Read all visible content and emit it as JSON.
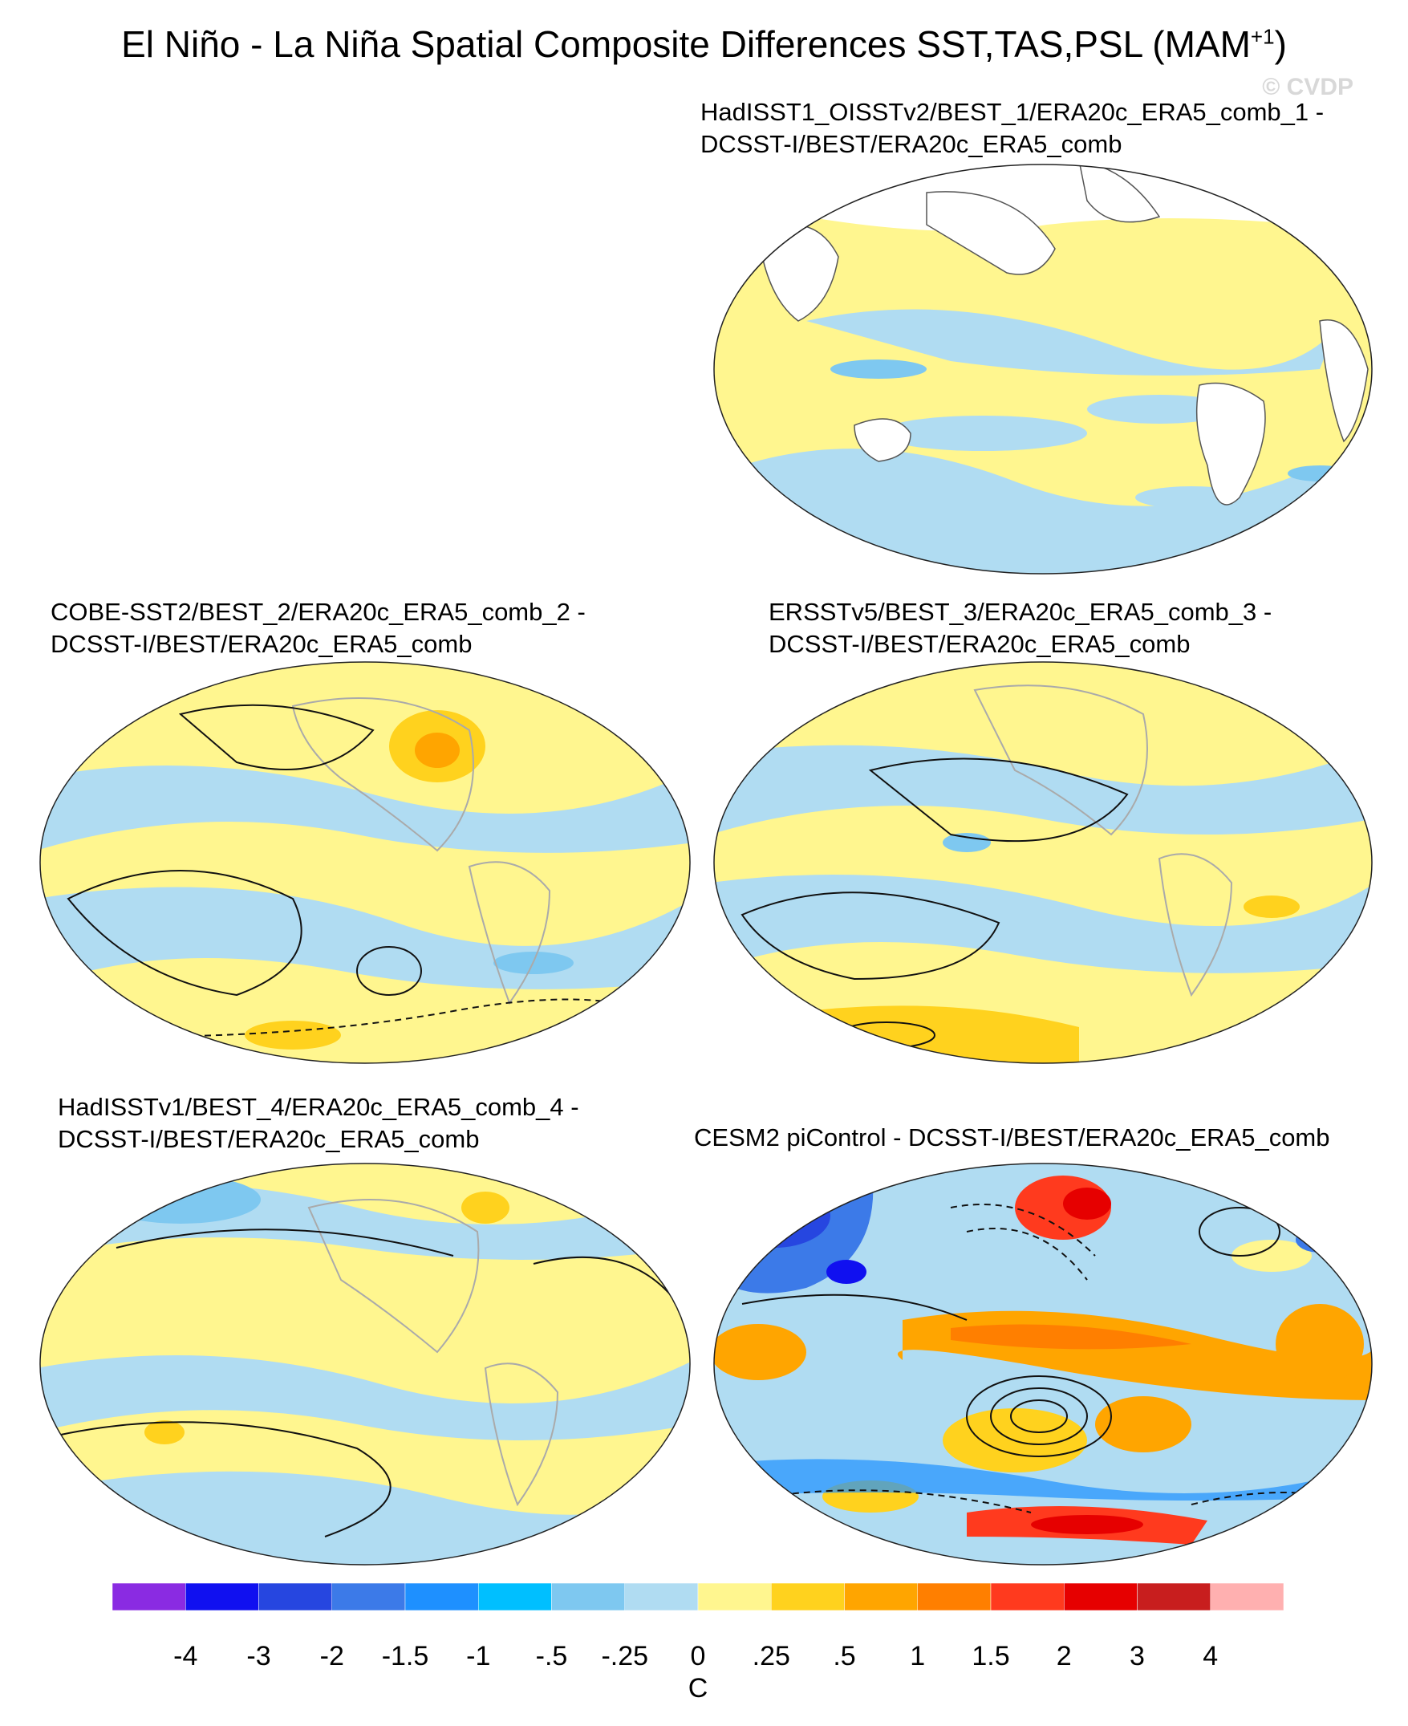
{
  "title": {
    "main": "El Niño - La Niña Spatial Composite Differences SST,TAS,PSL (MAM",
    "sup": "+1",
    "end": ")"
  },
  "watermark": "© CVDP",
  "panels": [
    {
      "line1": "HadISST1_OISSTv2/BEST_1/ERA20c_ERA5_comb_1 -",
      "line2": "DCSST-I/BEST/ERA20c_ERA5_comb"
    },
    {
      "line1": "COBE-SST2/BEST_2/ERA20c_ERA5_comb_2 -",
      "line2": "DCSST-I/BEST/ERA20c_ERA5_comb"
    },
    {
      "line1": "ERSSTv5/BEST_3/ERA20c_ERA5_comb_3 -",
      "line2": "DCSST-I/BEST/ERA20c_ERA5_comb"
    },
    {
      "line1": "HadISSTv1/BEST_4/ERA20c_ERA5_comb_4 -",
      "line2": "DCSST-I/BEST/ERA20c_ERA5_comb"
    },
    {
      "line1": "CESM2 piControl - DCSST-I/BEST/ERA20c_ERA5_comb",
      "line2": ""
    }
  ],
  "colorbar": {
    "unit": "C",
    "labels": [
      "-4",
      "-3",
      "-2",
      "-1.5",
      "-1",
      "-.5",
      "-.25",
      "0",
      ".25",
      ".5",
      "1",
      "1.5",
      "2",
      "3",
      "4"
    ],
    "colors": [
      "#8a2be2",
      "#1010f0",
      "#2646e0",
      "#3c7ae8",
      "#1e90ff",
      "#00bfff",
      "#7ec8f0",
      "#b0dcf2",
      "#fff68f",
      "#ffd21e",
      "#ffa500",
      "#ff7f00",
      "#ff3a1e",
      "#e60000",
      "#c81e1e",
      "#ffb0b0"
    ]
  }
}
